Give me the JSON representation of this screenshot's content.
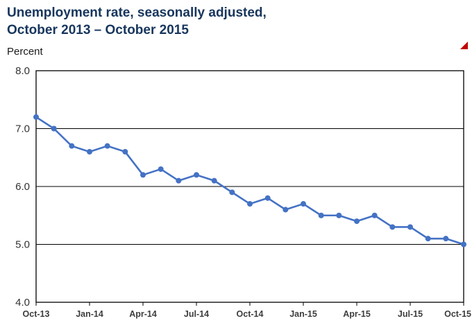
{
  "page": {
    "title_line1": "Unemployment rate, seasonally adjusted,",
    "title_line2": "October 2013 – October 2015",
    "y_axis_title": "Percent"
  },
  "chart_data": {
    "type": "line",
    "title": "Unemployment rate, seasonally adjusted, October 2013 – October 2015",
    "ylabel": "Percent",
    "xlabel": "",
    "ylim": [
      4.0,
      8.0
    ],
    "yticks": [
      8.0,
      7.0,
      6.0,
      5.0,
      4.0
    ],
    "gridlines": [
      5.0,
      6.0,
      7.0
    ],
    "grid": "on",
    "legend": "off",
    "x": [
      "Oct-13",
      "Nov-13",
      "Dec-13",
      "Jan-14",
      "Feb-14",
      "Mar-14",
      "Apr-14",
      "May-14",
      "Jun-14",
      "Jul-14",
      "Aug-14",
      "Sep-14",
      "Oct-14",
      "Nov-14",
      "Dec-14",
      "Jan-15",
      "Feb-15",
      "Mar-15",
      "Apr-15",
      "May-15",
      "Jun-15",
      "Jul-15",
      "Aug-15",
      "Sep-15",
      "Oct-15"
    ],
    "values": [
      7.2,
      7.0,
      6.7,
      6.6,
      6.7,
      6.6,
      6.2,
      6.3,
      6.1,
      6.2,
      6.1,
      5.9,
      5.7,
      5.8,
      5.6,
      5.7,
      5.5,
      5.5,
      5.4,
      5.5,
      5.3,
      5.3,
      5.1,
      5.1,
      5.0
    ],
    "xtick_labels": [
      "Oct-13",
      "Jan-14",
      "Apr-14",
      "Jul-14",
      "Oct-14",
      "Jan-15",
      "Apr-15",
      "Jul-15",
      "Oct-15"
    ],
    "xtick_indices": [
      0,
      3,
      6,
      9,
      12,
      15,
      18,
      21,
      24
    ],
    "line_color": "#4472c4",
    "grid_color": "#000000",
    "axis_color": "#000000",
    "tick_label_color": "#333333"
  }
}
